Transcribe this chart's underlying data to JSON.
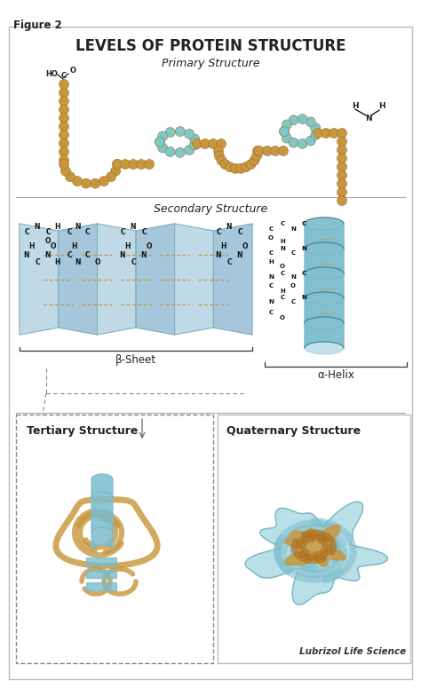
{
  "title": "LEVELS OF PROTEIN STRUCTURE",
  "figure_label": "Figure 2",
  "bg_color": "#ffffff",
  "border_color": "#bbbbbb",
  "main_c": "#C8963C",
  "alt_c": "#7EC8C8",
  "sheet_c": "#A8C8D8",
  "helix_c": "#7BBCCC",
  "bond_c": "#C8963C",
  "label_primary": "Primary Structure",
  "label_secondary": "Secondary Structure",
  "label_beta": "β-Sheet",
  "label_alpha": "α-Helix",
  "label_tertiary": "Tertiary Structure",
  "label_quaternary": "Quaternary Structure",
  "watermark": "Lubrizol Life Science",
  "text_color": "#222222",
  "divider_color": "#aaaaaa"
}
